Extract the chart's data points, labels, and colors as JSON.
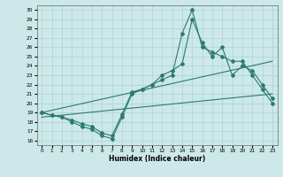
{
  "xlabel": "Humidex (Indice chaleur)",
  "bg_color": "#cce8e8",
  "plot_bg_color": "#cce8e8",
  "line_color": "#2d7a6e",
  "grid_color": "#aad4d0",
  "xlim": [
    -0.5,
    23.5
  ],
  "ylim": [
    15.5,
    30.5
  ],
  "yticks": [
    16,
    17,
    18,
    19,
    20,
    21,
    22,
    23,
    24,
    25,
    26,
    27,
    28,
    29,
    30
  ],
  "xticks": [
    0,
    1,
    2,
    3,
    4,
    5,
    6,
    7,
    8,
    9,
    10,
    11,
    12,
    13,
    14,
    15,
    16,
    17,
    18,
    19,
    20,
    21,
    22,
    23
  ],
  "line1_x": [
    0,
    1,
    2,
    3,
    4,
    5,
    6,
    7,
    8,
    9,
    10,
    11,
    12,
    13,
    14,
    15,
    16,
    17,
    18,
    19,
    20,
    21,
    22,
    23
  ],
  "line1_y": [
    19.0,
    18.7,
    18.5,
    18.0,
    17.5,
    17.2,
    16.5,
    16.2,
    18.5,
    21.0,
    21.5,
    22.0,
    22.5,
    23.0,
    27.5,
    30.0,
    26.0,
    25.5,
    25.0,
    24.5,
    24.5,
    23.0,
    21.5,
    20.0
  ],
  "line2_x": [
    0,
    1,
    2,
    3,
    4,
    5,
    6,
    7,
    8,
    9,
    10,
    11,
    12,
    13,
    14,
    15,
    16,
    17,
    18,
    19,
    20,
    21,
    22,
    23
  ],
  "line2_y": [
    19.0,
    18.7,
    18.5,
    18.2,
    17.8,
    17.5,
    16.8,
    16.5,
    18.8,
    21.2,
    21.5,
    22.0,
    23.0,
    23.5,
    24.2,
    29.0,
    26.5,
    25.0,
    26.0,
    23.0,
    24.0,
    23.5,
    22.0,
    20.5
  ],
  "line3_x": [
    0,
    23
  ],
  "line3_y": [
    19.0,
    24.5
  ],
  "line4_x": [
    0,
    23
  ],
  "line4_y": [
    18.5,
    21.0
  ]
}
